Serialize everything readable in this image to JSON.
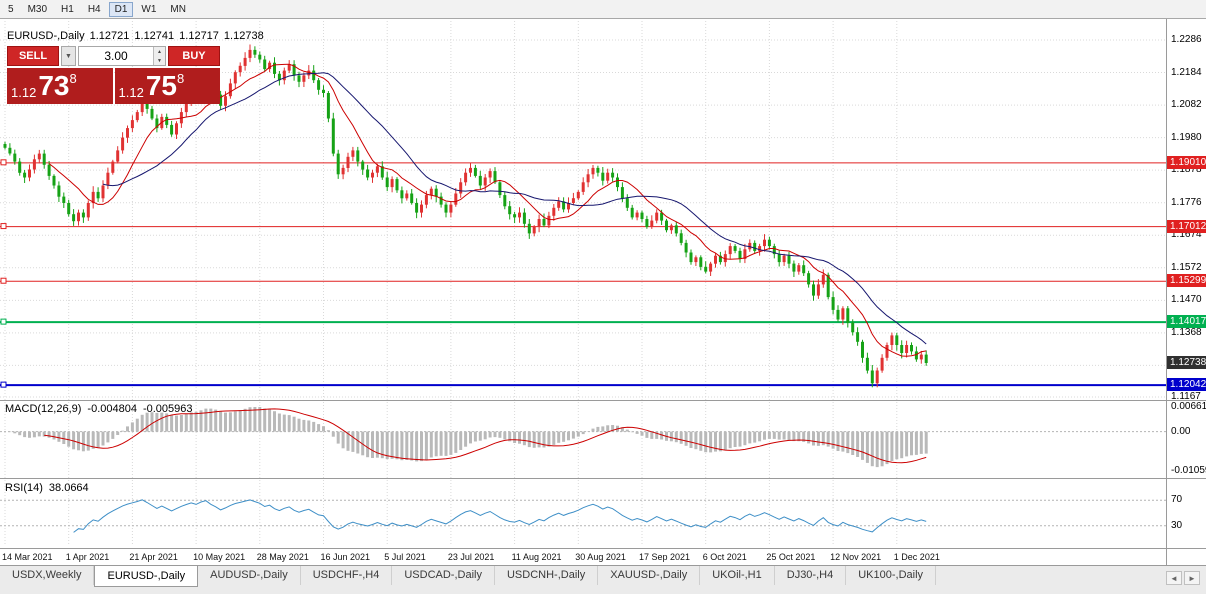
{
  "toolbar": {
    "timeframes": [
      {
        "label": "5",
        "active": false
      },
      {
        "label": "M30",
        "active": false
      },
      {
        "label": "H1",
        "active": false
      },
      {
        "label": "H4",
        "active": false
      },
      {
        "label": "D1",
        "active": true
      },
      {
        "label": "W1",
        "active": false
      },
      {
        "label": "MN",
        "active": false
      }
    ]
  },
  "chart_header": {
    "symbol": "EURUSD-,Daily",
    "open": "1.12721",
    "high": "1.12741",
    "low": "1.12717",
    "close": "1.12738"
  },
  "trade_panel": {
    "sell_label": "SELL",
    "buy_label": "BUY",
    "volume": "3.00",
    "bid": {
      "prefix": "1.12",
      "big": "73",
      "sup": "8"
    },
    "ask": {
      "prefix": "1.12",
      "big": "75",
      "sup": "8"
    }
  },
  "icons": {
    "dropdown": "▼",
    "step_up": "▲",
    "step_down": "▼",
    "scroll_left": "◄",
    "scroll_right": "►"
  },
  "price_axis": {
    "ticks": [
      "1.2286",
      "1.2184",
      "1.2082",
      "1.1980",
      "1.1878",
      "1.1776",
      "1.1674",
      "1.1572",
      "1.1470",
      "1.1368",
      "1.1167"
    ],
    "current": {
      "text": "1.12738",
      "bg": "#303030"
    }
  },
  "macd_panel": {
    "label": "MACD(12,26,9)",
    "value1": "-0.004804",
    "value2": "-0.005963",
    "axis_ticks": [
      "0.006611",
      "0.00",
      "-0.010597"
    ]
  },
  "rsi_panel": {
    "label": "RSI(14)",
    "value": "38.0664",
    "axis_ticks": [
      "70",
      "30"
    ]
  },
  "date_axis": {
    "labels": [
      "14 Mar 2021",
      "1 Apr 2021",
      "21 Apr 2021",
      "10 May 2021",
      "28 May 2021",
      "16 Jun 2021",
      "5 Jul 2021",
      "23 Jul 2021",
      "11 Aug 2021",
      "30 Aug 2021",
      "17 Sep 2021",
      "6 Oct 2021",
      "25 Oct 2021",
      "12 Nov 2021",
      "1 Dec 2021"
    ]
  },
  "tab_bar": {
    "tabs": [
      {
        "label": "USDX,Weekly",
        "active": false
      },
      {
        "label": "EURUSD-,Daily",
        "active": true
      },
      {
        "label": "AUDUSD-,Daily",
        "active": false
      },
      {
        "label": "USDCHF-,H4",
        "active": false
      },
      {
        "label": "USDCAD-,Daily",
        "active": false
      },
      {
        "label": "USDCNH-,Daily",
        "active": false
      },
      {
        "label": "XAUUSD-,Daily",
        "active": false
      },
      {
        "label": "UKOil-,H1",
        "active": false
      },
      {
        "label": "DJ30-,H4",
        "active": false
      },
      {
        "label": "UK100-,Daily",
        "active": false
      }
    ]
  },
  "colors": {
    "bull": "#e03232",
    "bear": "#16a216",
    "ma_fast": "#cc0000",
    "ma_slow": "#16166e",
    "macd_hist": "#b9b9b9",
    "macd_signal": "#cc0000",
    "rsi_line": "#3e8fc7",
    "grid": "#d9d9d9",
    "level": "#b4b4b4"
  },
  "chart_data": {
    "type": "candlestick",
    "symbol": "EURUSD-",
    "period": "Daily",
    "visible_range": {
      "price_min": 1.1167,
      "price_max": 1.2286
    },
    "label_every_n_candles": 13,
    "x_tick_labels": [
      "14 Mar 2021",
      "1 Apr 2021",
      "21 Apr 2021",
      "10 May 2021",
      "28 May 2021",
      "16 Jun 2021",
      "5 Jul 2021",
      "23 Jul 2021",
      "11 Aug 2021",
      "30 Aug 2021",
      "17 Sep 2021",
      "6 Oct 2021",
      "25 Oct 2021",
      "12 Nov 2021",
      "1 Dec 2021"
    ],
    "first_open": 1.196,
    "closes": [
      1.1948,
      1.193,
      1.1905,
      1.187,
      1.1855,
      1.188,
      1.1912,
      1.193,
      1.1895,
      1.186,
      1.183,
      1.1795,
      1.1775,
      1.174,
      1.1718,
      1.1745,
      1.173,
      1.1775,
      1.181,
      1.179,
      1.183,
      1.187,
      1.1905,
      1.194,
      1.198,
      1.201,
      1.2035,
      1.206,
      1.2095,
      1.207,
      1.204,
      1.201,
      1.2045,
      1.202,
      1.199,
      1.2025,
      1.206,
      1.209,
      1.212,
      1.2105,
      1.215,
      1.2175,
      1.214,
      1.2115,
      1.208,
      1.211,
      1.215,
      1.2185,
      1.2205,
      1.223,
      1.2255,
      1.224,
      1.2225,
      1.2195,
      1.2215,
      1.218,
      1.216,
      1.219,
      1.221,
      1.2175,
      1.2155,
      1.2175,
      1.219,
      1.216,
      1.213,
      1.212,
      1.204,
      1.193,
      1.1865,
      1.1885,
      1.192,
      1.194,
      1.1905,
      1.188,
      1.1855,
      1.187,
      1.189,
      1.1855,
      1.1825,
      1.185,
      1.1815,
      1.179,
      1.1805,
      1.1775,
      1.1745,
      1.177,
      1.18,
      1.182,
      1.1795,
      1.177,
      1.1745,
      1.177,
      1.1805,
      1.184,
      1.187,
      1.1885,
      1.186,
      1.183,
      1.1855,
      1.1875,
      1.184,
      1.18,
      1.1765,
      1.174,
      1.173,
      1.1745,
      1.171,
      1.168,
      1.17,
      1.1725,
      1.1705,
      1.1735,
      1.176,
      1.178,
      1.1755,
      1.1775,
      1.179,
      1.181,
      1.184,
      1.1865,
      1.1885,
      1.187,
      1.1845,
      1.187,
      1.1855,
      1.1825,
      1.179,
      1.176,
      1.173,
      1.1745,
      1.1725,
      1.17,
      1.172,
      1.1745,
      1.172,
      1.169,
      1.1705,
      1.168,
      1.165,
      1.162,
      1.159,
      1.1605,
      1.1575,
      1.156,
      1.1585,
      1.161,
      1.159,
      1.1615,
      1.164,
      1.1625,
      1.16,
      1.163,
      1.165,
      1.1625,
      1.164,
      1.166,
      1.164,
      1.1615,
      1.159,
      1.161,
      1.1585,
      1.156,
      1.158,
      1.1555,
      1.152,
      1.1485,
      1.152,
      1.155,
      1.148,
      1.144,
      1.141,
      1.1445,
      1.14,
      1.137,
      1.134,
      1.129,
      1.125,
      1.121,
      1.125,
      1.129,
      1.133,
      1.136,
      1.133,
      1.1305,
      1.133,
      1.131,
      1.1285,
      1.13,
      1.12738
    ],
    "sr_lines": [
      {
        "price": 1.1901,
        "label": "1.19010",
        "color": "#e02020",
        "width": 1
      },
      {
        "price": 1.17012,
        "label": "1.17012",
        "color": "#e02020",
        "width": 1
      },
      {
        "price": 1.15299,
        "label": "1.15299",
        "color": "#e02020",
        "width": 1
      },
      {
        "price": 1.14017,
        "label": "1.14017",
        "color": "#00b050",
        "width": 2
      },
      {
        "price": 1.12042,
        "label": "1.12042",
        "color": "#0000cc",
        "width": 2
      }
    ],
    "last_price": 1.12738,
    "moving_averages": [
      {
        "period": 10,
        "color_key": "ma_fast"
      },
      {
        "period": 21,
        "color_key": "ma_slow"
      }
    ],
    "indicators": [
      {
        "type": "MACD",
        "params": [
          12,
          26,
          9
        ],
        "display_values": [
          -0.004804,
          -0.005963
        ],
        "scale": {
          "max": 0.006611,
          "zero": 0.0,
          "min": -0.010597
        }
      },
      {
        "type": "RSI",
        "params": [
          14
        ],
        "display_value": 38.0664,
        "levels": [
          70,
          30
        ],
        "scale": {
          "min": 0,
          "max": 100
        }
      }
    ]
  }
}
